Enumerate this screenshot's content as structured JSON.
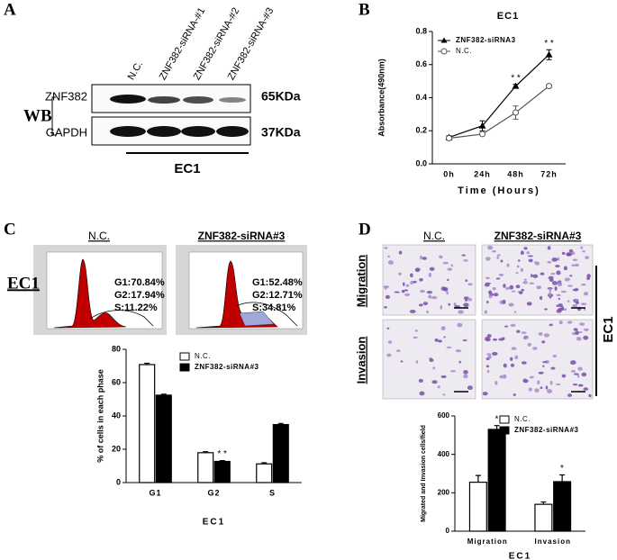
{
  "panel_a": {
    "label": "A",
    "columns": [
      "N.C.",
      "ZNF382-siRNA-#1",
      "ZNF382-siRNA-#2",
      "ZNF382-siRNA-#3"
    ],
    "rows": [
      "ZNF382",
      "GAPDH"
    ],
    "method": "WB",
    "sizes": [
      "65KDa",
      "37KDa"
    ],
    "cell_line": "EC1"
  },
  "panel_b": {
    "label": "B"
  },
  "panel_c": {
    "label": "C",
    "cell_line": "EC1",
    "groups": [
      {
        "title": "N.C.",
        "stats": [
          "G1:70.84%",
          "G2:17.94%",
          "S:11.22%"
        ]
      },
      {
        "title": "ZNF382-siRNA#3",
        "stats": [
          "G1:52.48%",
          "G2:12.71%",
          "S:34.81%"
        ]
      }
    ]
  },
  "panel_d": {
    "label": "D",
    "columns": [
      "N.C.",
      "ZNF382-siRNA#3"
    ],
    "rows": [
      "Migration",
      "Invasion"
    ],
    "cell_line": "EC1"
  },
  "chart_data": [
    {
      "type": "line",
      "title": "EC1",
      "categories": [
        "0h",
        "24h",
        "48h",
        "72h"
      ],
      "x_label": "Time (Hours)",
      "y_label": "Absorbance(490nm)",
      "ylim": [
        0,
        0.8
      ],
      "yticks": [
        {
          "value": 0,
          "label": "0.0"
        },
        {
          "value": 0.2,
          "label": "0.2"
        },
        {
          "value": 0.4,
          "label": "0.4"
        },
        {
          "value": 0.6,
          "label": "0.6"
        },
        {
          "value": 0.8,
          "label": "0.8"
        }
      ],
      "series": [
        {
          "name": "ZNF382-siRNA3",
          "color": "#000000",
          "marker": "triangle",
          "values": [
            0.16,
            0.23,
            0.47,
            0.66
          ],
          "errors": [
            0.01,
            0.03,
            0.01,
            0.03
          ]
        },
        {
          "name": "N.C.",
          "color": "#555555",
          "marker": "circle",
          "values": [
            0.155,
            0.18,
            0.31,
            0.47
          ],
          "errors": [
            0.01,
            0.01,
            0.04,
            0.01
          ]
        }
      ],
      "significance": [
        null,
        null,
        "* *",
        "* *"
      ]
    },
    {
      "type": "bar",
      "categories": [
        "G1",
        "G2",
        "S"
      ],
      "x_label": "EC1",
      "y_label": "% of cells in each phase",
      "ylim": [
        0,
        80
      ],
      "yticks": [
        0,
        20,
        40,
        60,
        80
      ],
      "series": [
        {
          "name": "N.C.",
          "color": "#ffffff",
          "values": [
            70.84,
            17.94,
            11.22
          ],
          "errors": [
            0.8,
            0.6,
            0.7
          ]
        },
        {
          "name": "ZNF382-siRNA#3",
          "color": "#000000",
          "values": [
            52.48,
            12.71,
            34.81
          ],
          "errors": [
            0.6,
            0.5,
            0.7
          ]
        }
      ],
      "significance": [
        null,
        "* *",
        null
      ]
    },
    {
      "type": "bar",
      "categories": [
        "Migration",
        "Invasion"
      ],
      "x_label": "EC1",
      "y_label": "Migrated and Invasion cells/field",
      "ylim": [
        0,
        600
      ],
      "yticks": [
        0,
        200,
        400,
        600
      ],
      "series": [
        {
          "name": "N.C.",
          "color": "#ffffff",
          "values": [
            255,
            140
          ],
          "errors": [
            35,
            12
          ]
        },
        {
          "name": "ZNF382-siRNA#3",
          "color": "#000000",
          "values": [
            530,
            258
          ],
          "errors": [
            20,
            35
          ]
        }
      ],
      "significance": [
        "*",
        "*"
      ]
    }
  ]
}
